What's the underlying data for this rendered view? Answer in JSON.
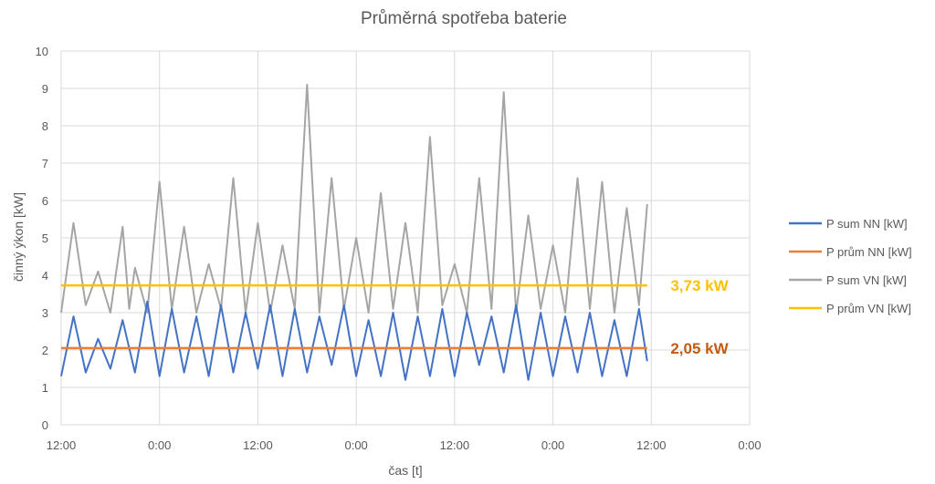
{
  "chart_data": {
    "type": "line",
    "title": "Průměrná spotřeba baterie",
    "xlabel": "čas [t]",
    "ylabel": "činný ýkon [kW]",
    "ylim": [
      0,
      10
    ],
    "y_ticks": [
      "0",
      "1",
      "2",
      "3",
      "4",
      "5",
      "6",
      "7",
      "8",
      "9",
      "10"
    ],
    "x_ticks": [
      "12:00",
      "0:00",
      "12:00",
      "0:00",
      "12:00",
      "0:00",
      "12:00",
      "0:00"
    ],
    "x_unit": "hours from first 12:00 tick",
    "xlim": [
      0,
      84
    ],
    "grid": true,
    "legend_position": "right",
    "series": [
      {
        "name": "P sum NN [kW]",
        "color": "#4472C4",
        "type": "line",
        "x": [
          0,
          1.5,
          3,
          4.5,
          6,
          7.5,
          9,
          10.5,
          12,
          13.5,
          15,
          16.5,
          18,
          19.5,
          21,
          22.5,
          24,
          25.5,
          27,
          28.5,
          30,
          31.5,
          33,
          34.5,
          36,
          37.5,
          39,
          40.5,
          42,
          43.5,
          45,
          46.5,
          48,
          49.5,
          51,
          52.5,
          54,
          55.5,
          57,
          58.5,
          60,
          61.5,
          63,
          64.5,
          66,
          67.5,
          69,
          70.5,
          71.5
        ],
        "y": [
          1.3,
          2.9,
          1.4,
          2.3,
          1.5,
          2.8,
          1.4,
          3.3,
          1.3,
          3.1,
          1.4,
          2.9,
          1.3,
          3.2,
          1.4,
          3.0,
          1.5,
          3.2,
          1.3,
          3.1,
          1.4,
          2.9,
          1.6,
          3.2,
          1.3,
          2.8,
          1.3,
          3.0,
          1.2,
          2.9,
          1.3,
          3.1,
          1.3,
          3.0,
          1.6,
          2.9,
          1.4,
          3.2,
          1.2,
          3.0,
          1.3,
          2.9,
          1.4,
          3.0,
          1.3,
          2.8,
          1.3,
          3.1,
          1.7
        ]
      },
      {
        "name": "P prům NN [kW]",
        "color": "#ED7D31",
        "type": "average",
        "x": [
          0,
          71.5
        ],
        "y": [
          2.05,
          2.05
        ]
      },
      {
        "name": "P sum VN [kW]",
        "color": "#A5A5A5",
        "type": "line",
        "x": [
          0,
          1.5,
          3,
          4.5,
          6,
          7.5,
          8.3,
          9,
          10.5,
          12,
          13.5,
          15,
          16.5,
          18,
          19.5,
          21,
          22.5,
          24,
          25.5,
          27,
          28.5,
          30,
          31.5,
          33,
          34.5,
          36,
          37.5,
          39,
          40.5,
          42,
          43.5,
          45,
          46.5,
          48,
          49.5,
          51,
          52.5,
          54,
          55.5,
          57,
          58.5,
          60,
          61.5,
          63,
          64.5,
          66,
          67.5,
          69,
          70.5,
          71.5
        ],
        "y": [
          3.0,
          5.4,
          3.2,
          4.1,
          3.0,
          5.3,
          3.1,
          4.2,
          3.0,
          6.5,
          3.1,
          5.3,
          3.0,
          4.3,
          3.1,
          6.6,
          3.0,
          5.4,
          3.0,
          4.8,
          3.1,
          9.1,
          3.0,
          6.6,
          3.1,
          5.0,
          3.0,
          6.2,
          3.1,
          5.4,
          3.0,
          7.7,
          3.2,
          4.3,
          3.0,
          6.6,
          3.1,
          8.9,
          3.0,
          5.6,
          3.1,
          4.8,
          3.0,
          6.6,
          3.1,
          6.5,
          3.0,
          5.8,
          3.2,
          5.9
        ]
      },
      {
        "name": "P prům VN [kW]",
        "color": "#FFC000",
        "type": "average",
        "x": [
          0,
          71.5
        ],
        "y": [
          3.73,
          3.73
        ]
      }
    ],
    "annotations": [
      {
        "text": "3,73 kW",
        "y": 3.73,
        "color": "#FFC000"
      },
      {
        "text": "2,05 kW",
        "y": 2.05,
        "color": "#C55A11"
      }
    ]
  }
}
